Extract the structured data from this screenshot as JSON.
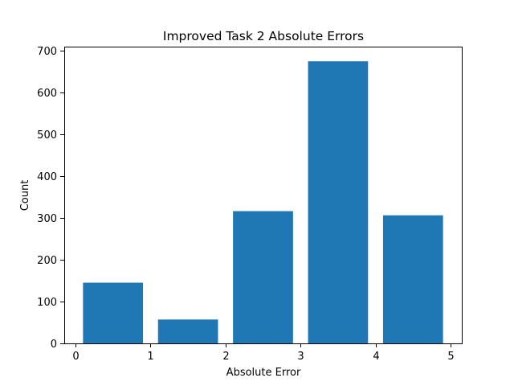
{
  "chart_data": {
    "type": "bar",
    "title": "Improved Task 2 Absolute Errors",
    "xlabel": "Absolute Error",
    "ylabel": "Count",
    "bins": [
      {
        "start": 0.1,
        "end": 0.9,
        "value": 145
      },
      {
        "start": 1.1,
        "end": 1.9,
        "value": 57
      },
      {
        "start": 2.1,
        "end": 2.9,
        "value": 316
      },
      {
        "start": 3.1,
        "end": 3.9,
        "value": 674
      },
      {
        "start": 4.1,
        "end": 4.9,
        "value": 306
      }
    ],
    "xlim": [
      -0.15,
      5.15
    ],
    "ylim": [
      0,
      709
    ],
    "xticks": [
      0,
      1,
      2,
      3,
      4,
      5
    ],
    "yticks": [
      0,
      100,
      200,
      300,
      400,
      500,
      600,
      700
    ],
    "bar_color": "#1f77b4",
    "grid": false
  }
}
